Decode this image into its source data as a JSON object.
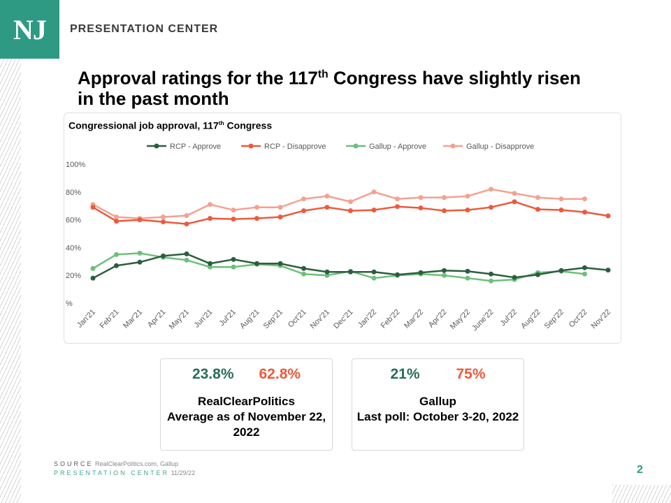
{
  "brand": {
    "logo_text": "NJ",
    "name": "PRESENTATION CENTER"
  },
  "headline": {
    "part1": "Approval ratings for the 117",
    "sup": "th",
    "part2": " Congress have slightly risen in the past month"
  },
  "chart_data": {
    "type": "line",
    "title": "Congressional job approval, 117",
    "title_sup": "th",
    "title_suffix": " Congress",
    "categories": [
      "Jan'21",
      "Feb'21",
      "Mar'21",
      "Apr'21",
      "May'21",
      "Jun'21",
      "Jul'21",
      "Aug'21",
      "Sep'21",
      "Oct'21",
      "Nov'21",
      "Dec'21",
      "Jan'22",
      "Feb'22",
      "Mar'22",
      "Apr'22",
      "May'22",
      "June'22",
      "Jul'22",
      "Aug'22",
      "Sep'22",
      "Oct'22",
      "Nov'22"
    ],
    "ylim": [
      0,
      100
    ],
    "yticks": [
      0,
      20,
      40,
      60,
      80,
      100
    ],
    "ytick_labels": [
      "%",
      "20%",
      "40%",
      "60%",
      "80%",
      "100%"
    ],
    "xlabel": "",
    "ylabel": "",
    "legend_position": "top",
    "grid": false,
    "series": [
      {
        "name": "RCP - Approve",
        "color": "#2b5e3f",
        "values": [
          18,
          27,
          29.5,
          34,
          35.5,
          28.5,
          31.5,
          28.5,
          28.5,
          25,
          22.5,
          22.5,
          22.5,
          20.5,
          22,
          23.5,
          23,
          21,
          18.5,
          20.5,
          23.5,
          25.5,
          23.8
        ]
      },
      {
        "name": "RCP - Disapprove",
        "color": "#ec5a3c",
        "values": [
          69,
          59,
          60,
          58.5,
          57,
          61,
          60.5,
          61,
          62,
          66.5,
          69,
          66.5,
          67,
          69.5,
          68.5,
          66.5,
          67,
          69,
          73,
          67.5,
          67,
          65.5,
          62.8
        ]
      },
      {
        "name": "Gallup - Approve",
        "color": "#6dbf7a",
        "values": [
          25,
          35,
          36,
          33,
          31,
          26,
          26,
          28,
          27,
          21,
          20,
          23,
          18,
          20,
          21,
          20,
          18,
          16,
          17,
          22,
          23,
          21,
          null
        ]
      },
      {
        "name": "Gallup - Disapprove",
        "color": "#f4a191",
        "values": [
          71,
          62,
          61,
          62,
          63,
          71,
          67,
          69,
          69,
          75,
          77,
          73,
          80,
          75,
          76,
          76,
          77,
          82,
          79,
          76,
          75,
          75,
          null
        ]
      }
    ]
  },
  "stats": {
    "rcp": {
      "approve": "23.8%",
      "disapprove": "62.8%",
      "line1": "RealClearPolitics",
      "line2": "Average as of November 22, 2022"
    },
    "gallup": {
      "approve": "21%",
      "disapprove": "75%",
      "line1": "Gallup",
      "line2": "Last poll: October 3-20, 2022"
    }
  },
  "footer": {
    "source_label": "SOURCE",
    "source_text": "RealClearPolitics.com, Gallup",
    "center_label": "PRESENTATION CENTER",
    "date": "11/29/22"
  },
  "page_number": "2",
  "colors": {
    "brand": "#2e9a84",
    "approve_text": "#276e5a",
    "disapprove_text": "#ec5a3c"
  }
}
